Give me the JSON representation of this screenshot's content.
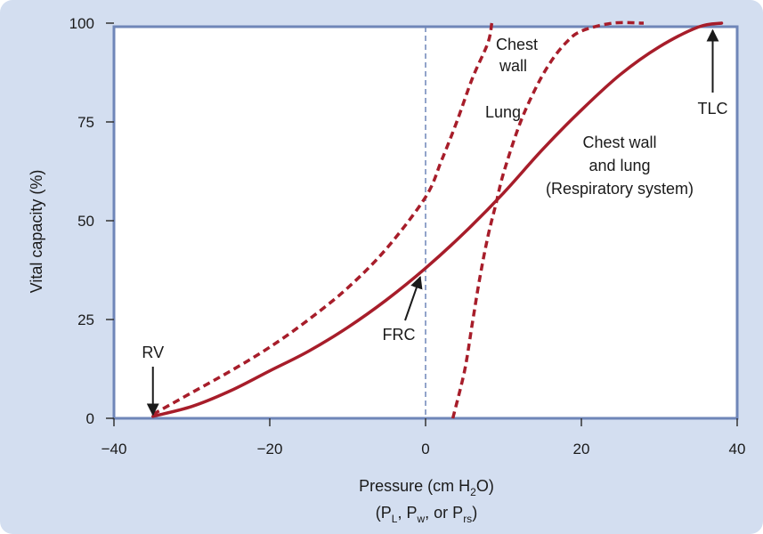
{
  "chart_data": {
    "type": "line",
    "xlabel": "Pressure (cm H2O)",
    "xlabel_parts": {
      "main": "Pressure (cm H",
      "sub": "2",
      "end": "O)"
    },
    "xlabel_line2": {
      "open": "(P",
      "sub1": "L",
      "sep1": ", P",
      "sub2": "w",
      "sep2": ", or P",
      "sub3": "rs",
      "close": ")"
    },
    "ylabel": "Vital capacity (%)",
    "xlim": [
      -40,
      40
    ],
    "ylim": [
      0,
      100
    ],
    "x_ticks": [
      -40,
      -20,
      0,
      20,
      40
    ],
    "x_tick_labels": [
      "−40",
      "−20",
      "0",
      "20",
      "40"
    ],
    "y_ticks": [
      0,
      25,
      50,
      75,
      100
    ],
    "y_tick_labels": [
      "0",
      "25",
      "50",
      "75",
      "100"
    ],
    "grid": false,
    "reference_line": {
      "x": 0,
      "style": "dashed",
      "color": "#6f86b8"
    },
    "series": [
      {
        "name": "Chest wall",
        "style": "dashed",
        "color": "#a71d2a",
        "points": [
          [
            -35,
            1
          ],
          [
            -30,
            6.5
          ],
          [
            -25,
            12
          ],
          [
            -20,
            18
          ],
          [
            -15,
            25
          ],
          [
            -10,
            33
          ],
          [
            -5,
            43
          ],
          [
            0,
            56
          ],
          [
            2,
            65
          ],
          [
            4,
            75
          ],
          [
            6,
            86
          ],
          [
            8,
            95
          ],
          [
            8.5,
            100
          ]
        ]
      },
      {
        "name": "Lung",
        "style": "dashed",
        "color": "#a71d2a",
        "points": [
          [
            3.5,
            0
          ],
          [
            5,
            12
          ],
          [
            6,
            24
          ],
          [
            7,
            36
          ],
          [
            8,
            46
          ],
          [
            9,
            54
          ],
          [
            10,
            62
          ],
          [
            12,
            74
          ],
          [
            14,
            83
          ],
          [
            16,
            90
          ],
          [
            18,
            95
          ],
          [
            20,
            98
          ],
          [
            24,
            100
          ],
          [
            28,
            100
          ]
        ]
      },
      {
        "name": "Chest wall and lung (Respiratory system)",
        "style": "solid",
        "color": "#a71d2a",
        "points": [
          [
            -35,
            0.5
          ],
          [
            -30,
            3
          ],
          [
            -25,
            7
          ],
          [
            -20,
            12
          ],
          [
            -15,
            17
          ],
          [
            -10,
            23
          ],
          [
            -5,
            30
          ],
          [
            0,
            38
          ],
          [
            5,
            47
          ],
          [
            10,
            57
          ],
          [
            15,
            68
          ],
          [
            20,
            78
          ],
          [
            25,
            87
          ],
          [
            30,
            94
          ],
          [
            35,
            99
          ],
          [
            38,
            100
          ]
        ]
      }
    ],
    "annotations": [
      {
        "id": "rv",
        "text": "RV",
        "x": -35,
        "y": 0
      },
      {
        "id": "frc",
        "text": "FRC",
        "x": 0,
        "y": 38
      },
      {
        "id": "tlc",
        "text": "TLC",
        "x": 38,
        "y": 100
      }
    ],
    "curve_labels": {
      "chest_wall": [
        "Chest",
        "wall"
      ],
      "lung": [
        "Lung"
      ],
      "combined": [
        "Chest wall",
        "and lung",
        "(Respiratory system)"
      ]
    }
  }
}
